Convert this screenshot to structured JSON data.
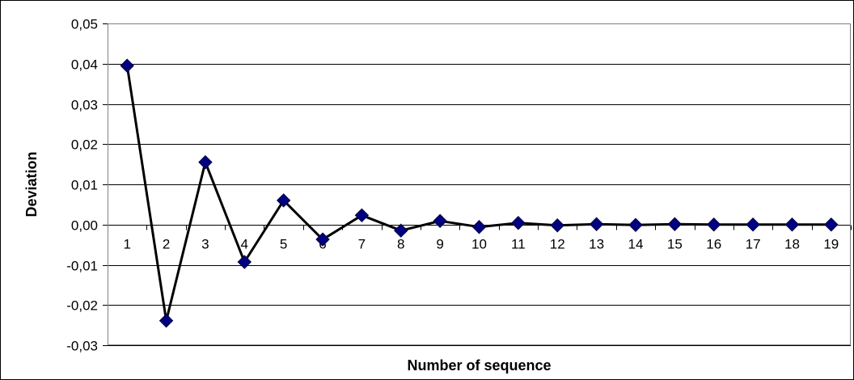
{
  "chart_data": {
    "type": "line",
    "title": "",
    "xlabel": "Number of sequence",
    "ylabel": "Deviation",
    "x": [
      "1",
      "2",
      "3",
      "4",
      "5",
      "6",
      "7",
      "8",
      "9",
      "10",
      "11",
      "12",
      "13",
      "14",
      "15",
      "16",
      "17",
      "18",
      "19"
    ],
    "series": [
      {
        "values": [
          0.0395,
          -0.0239,
          0.0155,
          -0.0093,
          0.006,
          -0.0037,
          0.0023,
          -0.0015,
          0.0009,
          -0.0006,
          0.0004,
          -0.0002,
          0.0001,
          -0.0001,
          0.0001,
          0.0,
          0.0,
          0.0,
          0.0
        ],
        "line_color": "#000000",
        "marker": "diamond",
        "marker_color": "#000080"
      }
    ],
    "y_ticks": [
      "-0,03",
      "-0,02",
      "-0,01",
      "0,00",
      "0,01",
      "0,02",
      "0,03",
      "0,04",
      "0,05"
    ],
    "ylim": [
      -0.03,
      0.05
    ],
    "grid": "horizontal",
    "legend": "none"
  }
}
